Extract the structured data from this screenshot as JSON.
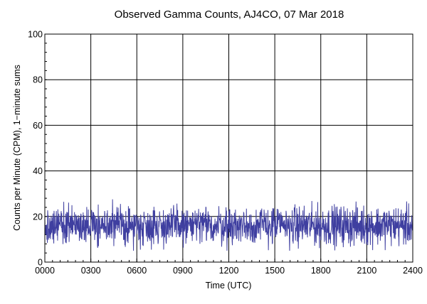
{
  "chart_data": {
    "type": "line",
    "title": "Observed Gamma Counts, AJ4CO, 07 Mar 2018",
    "xlabel": "Time (UTC)",
    "ylabel": "Counts per Minute (CPM), 1−minute sums",
    "xlim": [
      0,
      1440
    ],
    "ylim": [
      0,
      100
    ],
    "x_ticks": [
      {
        "value": 0,
        "label": "0000"
      },
      {
        "value": 180,
        "label": "0300"
      },
      {
        "value": 360,
        "label": "0600"
      },
      {
        "value": 540,
        "label": "0900"
      },
      {
        "value": 720,
        "label": "1200"
      },
      {
        "value": 900,
        "label": "1500"
      },
      {
        "value": 1080,
        "label": "1800"
      },
      {
        "value": 1260,
        "label": "2100"
      },
      {
        "value": 1440,
        "label": "2400"
      }
    ],
    "y_ticks": [
      {
        "value": 0,
        "label": "0"
      },
      {
        "value": 20,
        "label": "20"
      },
      {
        "value": 40,
        "label": "40"
      },
      {
        "value": 60,
        "label": "60"
      },
      {
        "value": 80,
        "label": "80"
      },
      {
        "value": 100,
        "label": "100"
      }
    ],
    "grid": true,
    "series": [
      {
        "color": "#3f3fa0",
        "x_start": 0,
        "x_step": 1,
        "mean": 16,
        "min": 5,
        "max": 31,
        "note_values": "1440 one-minute samples fluctuating roughly 8-24 CPM"
      }
    ]
  }
}
